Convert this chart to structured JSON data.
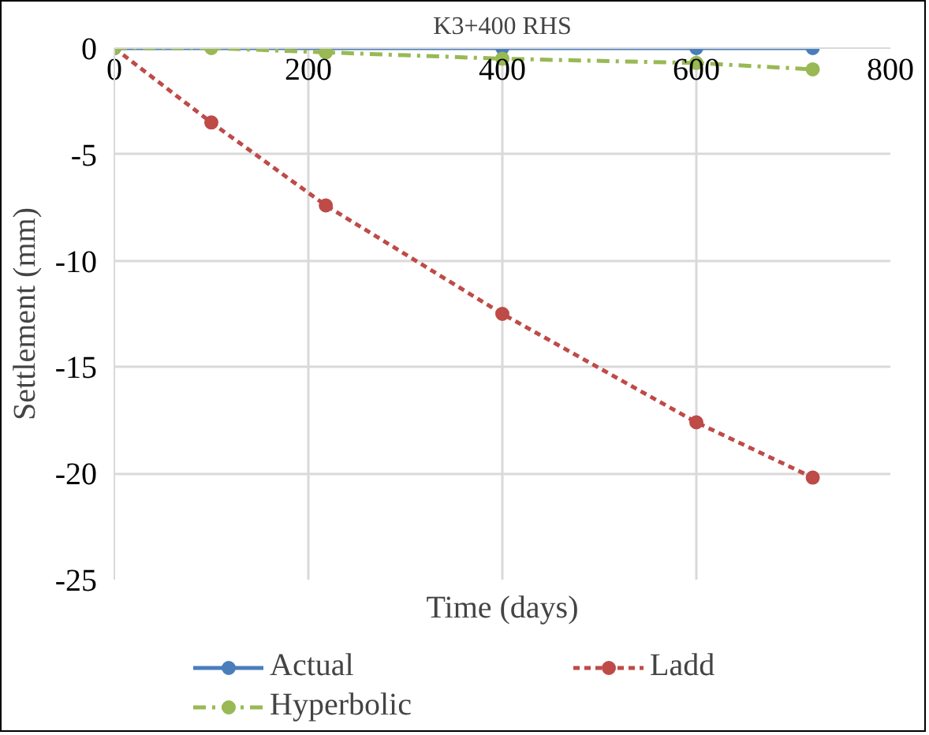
{
  "chart_data": {
    "type": "line",
    "title": "K3+400 RHS",
    "xlabel": "Time (days)",
    "ylabel": "Settlement (mm)",
    "xlim": [
      0,
      800
    ],
    "xticks": [
      0,
      200,
      400,
      600,
      800
    ],
    "ylim": [
      -25,
      0
    ],
    "yticks": [
      -25,
      -20,
      -15,
      -10,
      -5,
      0
    ],
    "grid": true,
    "legend": "bottom",
    "marker": "circle",
    "series": [
      {
        "name": "Actual",
        "color": "#4a7ebb",
        "line_style": "solid",
        "x": [
          0,
          218,
          400,
          600,
          720
        ],
        "values": [
          0,
          0,
          0,
          0,
          0
        ]
      },
      {
        "name": "Ladd",
        "color": "#be4b48",
        "line_style": "dashed",
        "x": [
          0,
          100,
          218,
          400,
          600,
          720
        ],
        "values": [
          0,
          -3.5,
          -7.4,
          -12.5,
          -17.6,
          -20.2
        ]
      },
      {
        "name": "Hyperbolic",
        "color": "#98b954",
        "line_style": "dashdot",
        "x": [
          0,
          100,
          218,
          400,
          600,
          720
        ],
        "values": [
          0,
          0,
          -0.2,
          -0.5,
          -0.7,
          -1
        ]
      }
    ]
  }
}
